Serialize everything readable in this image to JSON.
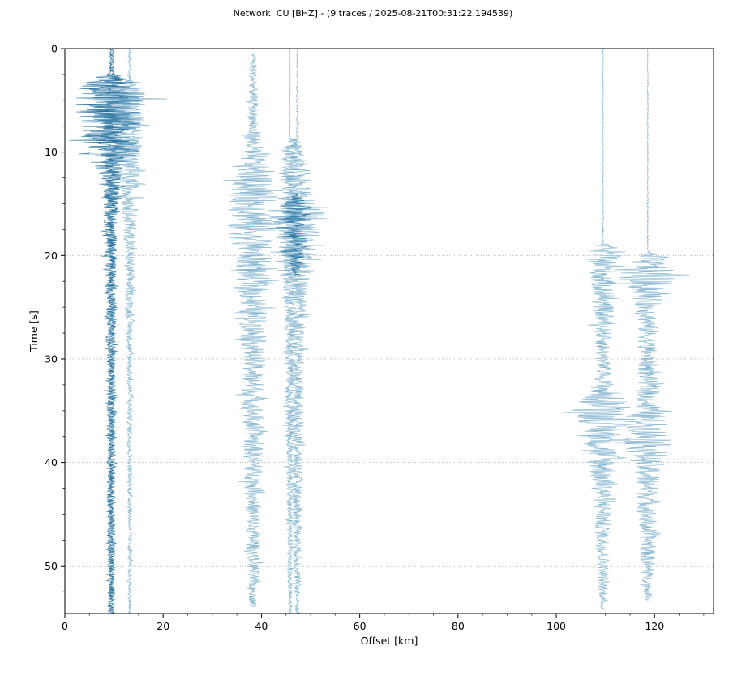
{
  "chart_data": {
    "type": "line",
    "title": "Network: CU [BHZ] - (9 traces / 2025-08-21T00:31:22.194539)",
    "xlabel": "Offset [km]",
    "ylabel": "Time [s]",
    "xlim": [
      0,
      132
    ],
    "ylim": [
      54.6,
      0
    ],
    "y_inverted": true,
    "grid": "horizontal-dotted",
    "x_ticks": [
      0,
      20,
      40,
      60,
      80,
      100,
      120
    ],
    "y_ticks": [
      0,
      10,
      20,
      30,
      40,
      50
    ],
    "colors": {
      "dark": "#1f6f9e",
      "light": "#6fa8c8",
      "axes": "#000000",
      "grid": "#b0b0b0"
    },
    "traces": [
      {
        "offset_km": 9.3,
        "color": "dark",
        "start_s": 0,
        "end_s": 54.6,
        "envelope": [
          [
            0,
            0.2
          ],
          [
            2.4,
            0.4
          ],
          [
            2.8,
            5.5
          ],
          [
            4,
            8
          ],
          [
            6,
            7
          ],
          [
            8,
            6
          ],
          [
            10,
            6.5
          ],
          [
            11,
            4
          ],
          [
            12,
            3
          ],
          [
            14,
            1.8
          ],
          [
            18,
            1.2
          ],
          [
            22,
            1.2
          ],
          [
            26,
            0.9
          ],
          [
            32,
            0.9
          ],
          [
            38,
            0.8
          ],
          [
            46,
            0.7
          ],
          [
            54.6,
            0.6
          ]
        ]
      },
      {
        "offset_km": 9.6,
        "color": "dark",
        "start_s": 0,
        "end_s": 54.6,
        "envelope": [
          [
            0,
            0.3
          ],
          [
            2.4,
            0.5
          ],
          [
            3,
            3
          ],
          [
            5,
            4
          ],
          [
            9,
            3.5
          ],
          [
            12,
            2
          ],
          [
            16,
            1.2
          ],
          [
            22,
            0.9
          ],
          [
            30,
            0.8
          ],
          [
            40,
            0.7
          ],
          [
            54.6,
            0.6
          ]
        ]
      },
      {
        "offset_km": 13.2,
        "color": "light",
        "start_s": 0,
        "end_s": 54.6,
        "envelope": [
          [
            0,
            0.2
          ],
          [
            2.5,
            0.3
          ],
          [
            4,
            2.5
          ],
          [
            6,
            3.5
          ],
          [
            8,
            3
          ],
          [
            10,
            2.5
          ],
          [
            13,
            2.2
          ],
          [
            16,
            1.6
          ],
          [
            18,
            1.3
          ],
          [
            20,
            1.0
          ],
          [
            24,
            0.8
          ],
          [
            30,
            0.6
          ],
          [
            40,
            0.5
          ],
          [
            50,
            0.4
          ],
          [
            54.6,
            0.3
          ]
        ]
      },
      {
        "offset_km": 38.3,
        "color": "light",
        "start_s": 0.5,
        "end_s": 54,
        "envelope": [
          [
            0.5,
            0.2
          ],
          [
            1,
            0.8
          ],
          [
            4,
            0.9
          ],
          [
            7,
            1.2
          ],
          [
            10,
            2.5
          ],
          [
            12,
            3.5
          ],
          [
            14,
            5
          ],
          [
            16,
            4.5
          ],
          [
            17,
            6
          ],
          [
            19,
            4
          ],
          [
            22,
            3.5
          ],
          [
            25,
            3
          ],
          [
            30,
            2.5
          ],
          [
            35,
            2.3
          ],
          [
            40,
            2
          ],
          [
            45,
            1.6
          ],
          [
            50,
            1.4
          ],
          [
            54,
            0.7
          ]
        ]
      },
      {
        "offset_km": 45.8,
        "color": "light",
        "start_s": 0,
        "end_s": 54.6,
        "envelope": [
          [
            0,
            0.1
          ],
          [
            8.5,
            0.1
          ],
          [
            9,
            1.8
          ],
          [
            10,
            2
          ],
          [
            12,
            1.5
          ],
          [
            14,
            1.5
          ],
          [
            16,
            2.5
          ],
          [
            18,
            2.5
          ],
          [
            20,
            2
          ],
          [
            24,
            1.2
          ],
          [
            30,
            1
          ],
          [
            40,
            0.8
          ],
          [
            50,
            0.6
          ],
          [
            54.6,
            0.3
          ]
        ]
      },
      {
        "offset_km": 47.3,
        "color": "light",
        "start_s": 0,
        "end_s": 54.6,
        "envelope": [
          [
            0,
            0.1
          ],
          [
            8.8,
            0.3
          ],
          [
            9.5,
            1.2
          ],
          [
            12,
            2
          ],
          [
            14,
            3
          ],
          [
            15,
            6
          ],
          [
            16,
            7
          ],
          [
            17,
            5
          ],
          [
            19,
            4
          ],
          [
            21,
            3
          ],
          [
            24,
            2
          ],
          [
            28,
            1.5
          ],
          [
            32,
            1.3
          ],
          [
            38,
            1.2
          ],
          [
            45,
            1
          ],
          [
            50,
            0.8
          ],
          [
            54.6,
            0.5
          ]
        ]
      },
      {
        "offset_km": 47.0,
        "color": "dark",
        "start_s": 14,
        "end_s": 22,
        "envelope": [
          [
            14,
            0.3
          ],
          [
            15,
            3
          ],
          [
            16,
            3.5
          ],
          [
            18,
            2.5
          ],
          [
            20,
            2
          ],
          [
            22,
            0.5
          ]
        ]
      },
      {
        "offset_km": 109.5,
        "color": "light",
        "start_s": 0,
        "end_s": 54.2,
        "envelope": [
          [
            0,
            0.1
          ],
          [
            18.8,
            0.15
          ],
          [
            19.2,
            3
          ],
          [
            21,
            3.5
          ],
          [
            23,
            2.5
          ],
          [
            26,
            2
          ],
          [
            29,
            1.6
          ],
          [
            32,
            1.6
          ],
          [
            33,
            3
          ],
          [
            34,
            5
          ],
          [
            35,
            7
          ],
          [
            36,
            5
          ],
          [
            38,
            4
          ],
          [
            40,
            3.5
          ],
          [
            42,
            2.5
          ],
          [
            45,
            1.8
          ],
          [
            48,
            1.5
          ],
          [
            52,
            1
          ],
          [
            54.2,
            0.5
          ]
        ]
      },
      {
        "offset_km": 118.6,
        "color": "light",
        "start_s": 0,
        "end_s": 53.5,
        "envelope": [
          [
            0,
            0.1
          ],
          [
            19.5,
            0.15
          ],
          [
            20,
            3
          ],
          [
            21,
            4
          ],
          [
            22,
            7
          ],
          [
            23,
            4
          ],
          [
            25,
            2.5
          ],
          [
            28,
            2
          ],
          [
            32,
            2
          ],
          [
            34,
            2.5
          ],
          [
            36,
            4
          ],
          [
            38,
            5
          ],
          [
            40,
            3.5
          ],
          [
            42,
            2.5
          ],
          [
            45,
            2
          ],
          [
            50,
            1.5
          ],
          [
            53.5,
            0.5
          ]
        ]
      }
    ]
  }
}
